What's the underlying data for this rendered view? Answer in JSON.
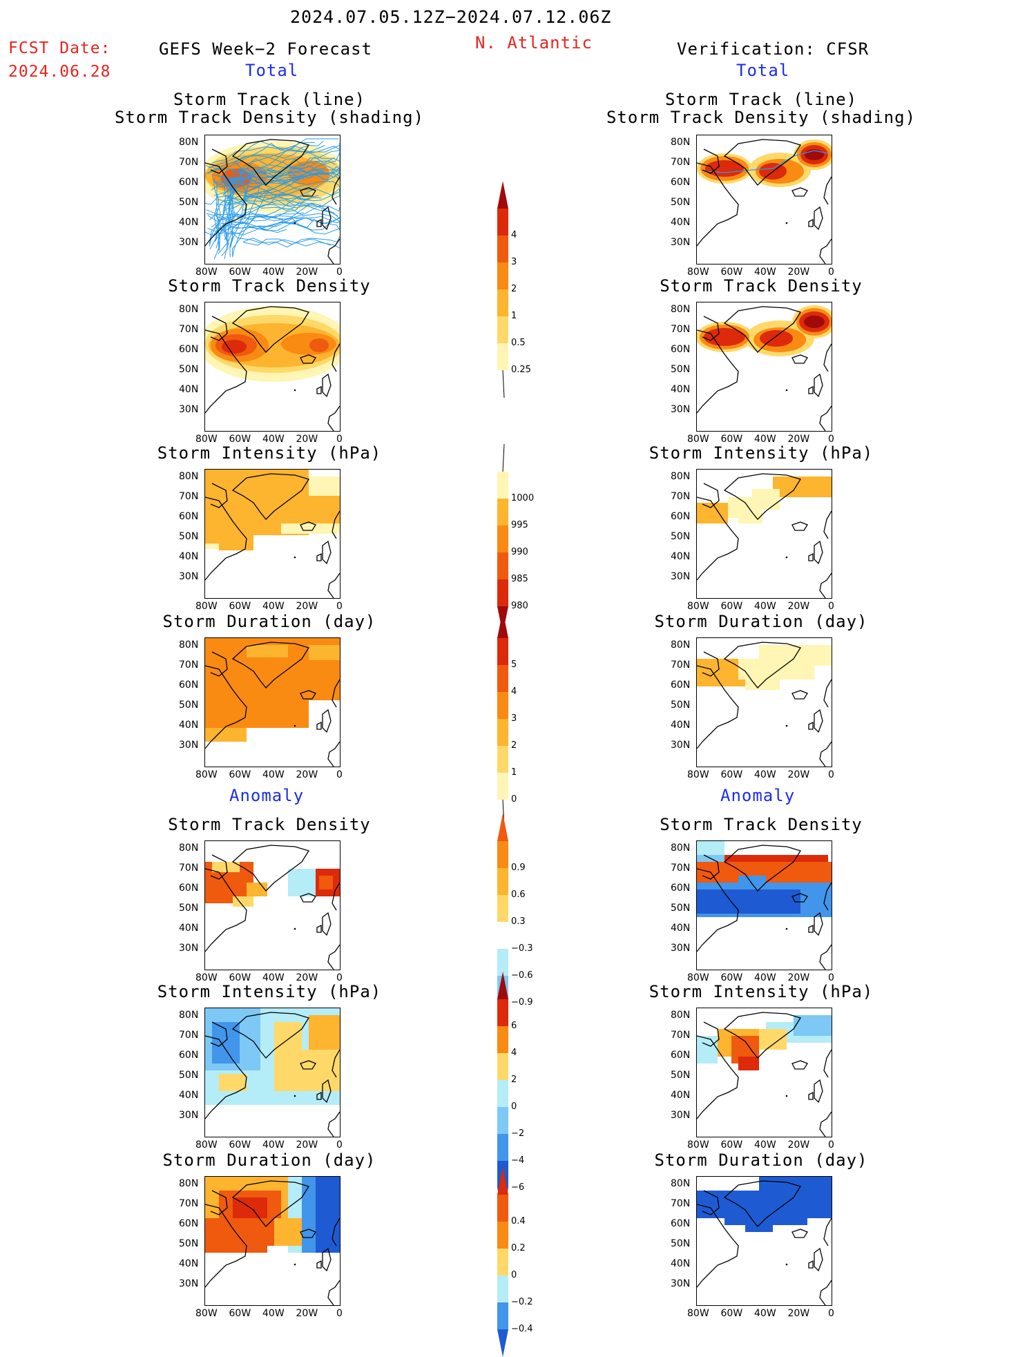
{
  "header": {
    "date_range": "2024.07.05.12Z−2024.07.12.06Z",
    "fcst_label": "FCST Date:",
    "fcst_date": "2024.06.28",
    "forecast_title": "GEFS Week−2 Forecast",
    "region": "N. Atlantic",
    "verification_title": "Verification: CFSR"
  },
  "sections": {
    "total_label": "Total",
    "anomaly_label": "Anomaly"
  },
  "panel_titles": {
    "track_line": "Storm Track (line)",
    "track_density_shading": "Storm Track Density (shading)",
    "track_density": "Storm Track Density",
    "intensity": "Storm Intensity (hPa)",
    "duration": "Storm Duration (day)"
  },
  "axes": {
    "lat_ticks": [
      "80N",
      "70N",
      "60N",
      "50N",
      "40N",
      "30N"
    ],
    "lon_ticks": [
      "80W",
      "60W",
      "40W",
      "20W",
      "0"
    ]
  },
  "colorbars": {
    "density_total": [
      "4",
      "3",
      "2",
      "1",
      "0.5",
      "0.25"
    ],
    "intensity_total": [
      "1000",
      "995",
      "990",
      "985",
      "980"
    ],
    "duration_total": [
      "5",
      "4",
      "3",
      "2",
      "1",
      "0"
    ],
    "density_anom": [
      "0.9",
      "0.6",
      "0.3",
      "−0.3",
      "−0.6",
      "−0.9"
    ],
    "intensity_anom": [
      "6",
      "4",
      "2",
      "0",
      "−2",
      "−4",
      "−6"
    ],
    "duration_anom": [
      "0.4",
      "0.2",
      "0",
      "−0.2",
      "−0.4"
    ]
  },
  "colors": {
    "yellow_light": "#fff5b4",
    "yellow": "#fed96a",
    "orange_light": "#fdb42e",
    "orange": "#f98a12",
    "red_orange": "#ef5a0f",
    "red": "#dc2a0a",
    "dark_red": "#a00a0a",
    "blue_light": "#b4ecf8",
    "blue_mid": "#7dc8f5",
    "blue": "#4195eb",
    "blue_dark": "#1e5ad2",
    "track_line": "#2b9be8"
  }
}
